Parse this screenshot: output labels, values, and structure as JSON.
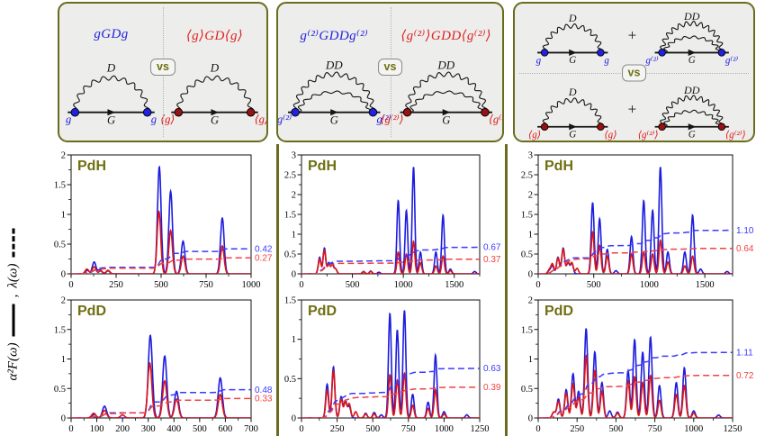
{
  "colors": {
    "blue": "#1c1cdf",
    "red": "#dc1414",
    "lambda_blue": "#3a3aff",
    "lambda_red": "#f24141",
    "blue_vertex": "#2121e6",
    "red_vertex": "#991111",
    "olive_border": "#6b6b1d",
    "panel_bg": "#ededeb",
    "title_olive": "#6f6f12",
    "axis": "#111111"
  },
  "ylabel": {
    "alpha_f": "α²F(ω)",
    "comma": ",",
    "lambda": "λ(ω)"
  },
  "panels": [
    {
      "name": "first-order-vertex",
      "vs": "vs",
      "left": {
        "formula": "gGDg",
        "color": "blue",
        "arc": "D",
        "arc_label": "D",
        "line_label": "G",
        "vertex_left": "g",
        "vertex_right": "g"
      },
      "right": {
        "formula": "⟨g⟩GD⟨g⟩",
        "color": "red",
        "arc": "D",
        "arc_label": "D",
        "line_label": "G",
        "vertex_left": "⟨g⟩",
        "vertex_right": "⟨g⟩"
      }
    },
    {
      "name": "second-order-vertex",
      "vs": "vs",
      "left": {
        "formula": "g⁽²⁾GDDg⁽²⁾",
        "color": "blue",
        "arc": "DD",
        "arc_label": "DD",
        "line_label": "G",
        "vertex_left": "g⁽²⁾",
        "vertex_right": "g⁽²⁾"
      },
      "right": {
        "formula": "⟨g⁽²⁾⟩GDD⟨g⁽²⁾⟩",
        "color": "red",
        "arc": "DD",
        "arc_label": "DD",
        "line_label": "G",
        "vertex_left": "⟨g⁽²⁾⟩",
        "vertex_right": "⟨g⁽²⁾⟩"
      }
    },
    {
      "name": "sum-of-diagrams",
      "vs": "vs",
      "plus": "+",
      "rows": [
        {
          "color": "blue",
          "diagrams": [
            {
              "arc": "D",
              "arc_label": "D",
              "line_label": "G",
              "vertex_left": "g",
              "vertex_right": "g"
            },
            {
              "arc": "DD",
              "arc_label": "DD",
              "line_label": "G",
              "vertex_left": "g⁽²⁾",
              "vertex_right": "g⁽²⁾"
            }
          ]
        },
        {
          "color": "red",
          "diagrams": [
            {
              "arc": "D",
              "arc_label": "D",
              "line_label": "G",
              "vertex_left": "⟨g⟩",
              "vertex_right": "⟨g⟩"
            },
            {
              "arc": "DD",
              "arc_label": "DD",
              "line_label": "G",
              "vertex_left": "⟨g⁽²⁾⟩",
              "vertex_right": "⟨g⁽²⁾⟩"
            }
          ]
        }
      ]
    }
  ],
  "chart_data": [
    {
      "id": "pdh-g",
      "type": "line",
      "title": "PdH",
      "xlim": [
        0,
        1000
      ],
      "xticks": [
        0,
        250,
        500,
        750,
        1000
      ],
      "ylim": [
        0,
        2
      ],
      "yticks": [
        0,
        0.5,
        1,
        1.5,
        2
      ],
      "sigma": 10,
      "series": [
        {
          "name": "alpha2F-blue",
          "color": "blue",
          "style": "solid",
          "peaks": [
            [
              90,
              0.06
            ],
            [
              128,
              0.2
            ],
            [
              160,
              0.07
            ],
            [
              205,
              0.05
            ],
            [
              490,
              1.8
            ],
            [
              553,
              1.39
            ],
            [
              622,
              0.55
            ],
            [
              840,
              0.94
            ]
          ]
        },
        {
          "name": "alpha2F-red",
          "color": "red",
          "style": "solid",
          "peaks": [
            [
              88,
              0.08
            ],
            [
              128,
              0.12
            ],
            [
              165,
              0.05
            ],
            [
              205,
              0.06
            ],
            [
              488,
              1.05
            ],
            [
              553,
              0.73
            ],
            [
              622,
              0.3
            ],
            [
              840,
              0.47
            ]
          ]
        },
        {
          "name": "lambda-blue",
          "color": "blue",
          "style": "dashed",
          "final": 0.42,
          "label": "0.42"
        },
        {
          "name": "lambda-red",
          "color": "red",
          "style": "dashed",
          "final": 0.27,
          "label": "0.27"
        }
      ]
    },
    {
      "id": "pdh-g2",
      "type": "line",
      "title": "PdH",
      "xlim": [
        0,
        1750
      ],
      "xticks": [
        0,
        500,
        1000,
        1500
      ],
      "ylim": [
        0,
        3
      ],
      "yticks": [
        0,
        0.5,
        1,
        1.5,
        2,
        2.5,
        3
      ],
      "sigma": 13,
      "series": [
        {
          "name": "alpha2F-blue",
          "color": "blue",
          "style": "solid",
          "peaks": [
            [
              178,
              0.42
            ],
            [
              225,
              0.65
            ],
            [
              268,
              0.28
            ],
            [
              303,
              0.26
            ],
            [
              335,
              0.12
            ],
            [
              610,
              0.06
            ],
            [
              680,
              0.07
            ],
            [
              760,
              0.04
            ],
            [
              950,
              1.85
            ],
            [
              1030,
              1.6
            ],
            [
              1100,
              2.7
            ],
            [
              1168,
              0.55
            ],
            [
              1320,
              0.55
            ],
            [
              1390,
              1.48
            ],
            [
              1462,
              0.12
            ],
            [
              1700,
              0.06
            ]
          ]
        },
        {
          "name": "alpha2F-red",
          "color": "red",
          "style": "solid",
          "peaks": [
            [
              178,
              0.38
            ],
            [
              225,
              0.6
            ],
            [
              268,
              0.25
            ],
            [
              303,
              0.22
            ],
            [
              335,
              0.12
            ],
            [
              610,
              0.05
            ],
            [
              680,
              0.06
            ],
            [
              950,
              0.55
            ],
            [
              1030,
              0.5
            ],
            [
              1100,
              0.82
            ],
            [
              1168,
              0.28
            ],
            [
              1320,
              0.2
            ],
            [
              1390,
              0.45
            ],
            [
              1462,
              0.08
            ]
          ]
        },
        {
          "name": "lambda-blue",
          "color": "blue",
          "style": "dashed",
          "final": 0.67,
          "label": "0.67"
        },
        {
          "name": "lambda-red",
          "color": "red",
          "style": "dashed",
          "final": 0.37,
          "label": "0.37"
        }
      ]
    },
    {
      "id": "pdh-total",
      "type": "line",
      "title": "PdH",
      "xlim": [
        0,
        1750
      ],
      "xticks": [
        0,
        500,
        1000,
        1500
      ],
      "ylim": [
        0,
        3
      ],
      "yticks": [
        0,
        0.5,
        1,
        1.5,
        2,
        2.5,
        3
      ],
      "sigma": 13,
      "series": [
        {
          "name": "alpha2F-blue",
          "color": "blue",
          "style": "solid",
          "peaks": [
            [
              100,
              0.08
            ],
            [
              128,
              0.2
            ],
            [
              178,
              0.42
            ],
            [
              225,
              0.65
            ],
            [
              268,
              0.28
            ],
            [
              303,
              0.26
            ],
            [
              490,
              1.8
            ],
            [
              553,
              1.39
            ],
            [
              622,
              0.62
            ],
            [
              700,
              0.08
            ],
            [
              840,
              0.94
            ],
            [
              950,
              1.85
            ],
            [
              1030,
              1.6
            ],
            [
              1100,
              2.7
            ],
            [
              1168,
              0.55
            ],
            [
              1320,
              0.55
            ],
            [
              1390,
              1.48
            ],
            [
              1462,
              0.12
            ],
            [
              1700,
              0.06
            ]
          ]
        },
        {
          "name": "alpha2F-red",
          "color": "red",
          "style": "solid",
          "peaks": [
            [
              100,
              0.1
            ],
            [
              128,
              0.25
            ],
            [
              178,
              0.4
            ],
            [
              225,
              0.62
            ],
            [
              268,
              0.3
            ],
            [
              303,
              0.28
            ],
            [
              350,
              0.14
            ],
            [
              490,
              1.05
            ],
            [
              553,
              0.72
            ],
            [
              622,
              0.45
            ],
            [
              840,
              0.5
            ],
            [
              950,
              0.55
            ],
            [
              1030,
              0.5
            ],
            [
              1100,
              0.85
            ],
            [
              1168,
              0.3
            ],
            [
              1320,
              0.2
            ],
            [
              1390,
              0.45
            ]
          ]
        },
        {
          "name": "lambda-blue",
          "color": "blue",
          "style": "dashed",
          "final": 1.1,
          "label": "1.10"
        },
        {
          "name": "lambda-red",
          "color": "red",
          "style": "dashed",
          "final": 0.64,
          "label": "0.64"
        }
      ]
    },
    {
      "id": "pdd-g",
      "type": "line",
      "title": "PdD",
      "xlim": [
        0,
        700
      ],
      "xticks": [
        0,
        100,
        200,
        300,
        400,
        500,
        600,
        700
      ],
      "ylim": [
        0,
        2
      ],
      "yticks": [
        0,
        0.5,
        1,
        1.5,
        2
      ],
      "sigma": 8,
      "series": [
        {
          "name": "alpha2F-blue",
          "color": "blue",
          "style": "solid",
          "peaks": [
            [
              90,
              0.06
            ],
            [
              130,
              0.2
            ],
            [
              308,
              1.4
            ],
            [
              364,
              1.05
            ],
            [
              410,
              0.45
            ],
            [
              580,
              0.68
            ]
          ]
        },
        {
          "name": "alpha2F-red",
          "color": "red",
          "style": "solid",
          "peaks": [
            [
              88,
              0.08
            ],
            [
              130,
              0.13
            ],
            [
              200,
              0.05
            ],
            [
              306,
              0.93
            ],
            [
              364,
              0.63
            ],
            [
              410,
              0.32
            ],
            [
              580,
              0.4
            ]
          ]
        },
        {
          "name": "lambda-blue",
          "color": "blue",
          "style": "dashed",
          "final": 0.48,
          "label": "0.48"
        },
        {
          "name": "lambda-red",
          "color": "red",
          "style": "dashed",
          "final": 0.33,
          "label": "0.33"
        }
      ]
    },
    {
      "id": "pdd-g2",
      "type": "line",
      "title": "PdD",
      "xlim": [
        0,
        1250
      ],
      "xticks": [
        0,
        250,
        500,
        750,
        1000,
        1250
      ],
      "ylim": [
        0,
        1.5
      ],
      "yticks": [
        0,
        0.5,
        1,
        1.5
      ],
      "sigma": 10,
      "series": [
        {
          "name": "alpha2F-blue",
          "color": "blue",
          "style": "solid",
          "peaks": [
            [
              180,
              0.43
            ],
            [
              224,
              0.65
            ],
            [
              278,
              0.27
            ],
            [
              308,
              0.22
            ],
            [
              335,
              0.15
            ],
            [
              450,
              0.06
            ],
            [
              510,
              0.07
            ],
            [
              560,
              0.04
            ],
            [
              620,
              1.33
            ],
            [
              672,
              1.12
            ],
            [
              722,
              1.37
            ],
            [
              780,
              0.3
            ],
            [
              888,
              0.2
            ],
            [
              940,
              0.8
            ],
            [
              1000,
              0.08
            ],
            [
              1160,
              0.04
            ]
          ]
        },
        {
          "name": "alpha2F-red",
          "color": "red",
          "style": "solid",
          "peaks": [
            [
              180,
              0.35
            ],
            [
              224,
              0.6
            ],
            [
              278,
              0.24
            ],
            [
              308,
              0.2
            ],
            [
              335,
              0.18
            ],
            [
              380,
              0.08
            ],
            [
              450,
              0.05
            ],
            [
              510,
              0.05
            ],
            [
              620,
              0.55
            ],
            [
              672,
              0.48
            ],
            [
              722,
              0.57
            ],
            [
              780,
              0.16
            ],
            [
              888,
              0.12
            ],
            [
              940,
              0.36
            ],
            [
              1000,
              0.05
            ]
          ]
        },
        {
          "name": "lambda-blue",
          "color": "blue",
          "style": "dashed",
          "final": 0.63,
          "label": "0.63"
        },
        {
          "name": "lambda-red",
          "color": "red",
          "style": "dashed",
          "final": 0.39,
          "label": "0.39"
        }
      ]
    },
    {
      "id": "pdd-total",
      "type": "line",
      "title": "PdD",
      "xlim": [
        0,
        1250
      ],
      "xticks": [
        0,
        250,
        500,
        750,
        1000,
        1250
      ],
      "ylim": [
        0,
        2
      ],
      "yticks": [
        0,
        0.5,
        1,
        1.5,
        2
      ],
      "sigma": 10,
      "series": [
        {
          "name": "alpha2F-blue",
          "color": "blue",
          "style": "solid",
          "peaks": [
            [
              100,
              0.1
            ],
            [
              130,
              0.32
            ],
            [
              180,
              0.48
            ],
            [
              224,
              0.75
            ],
            [
              260,
              0.45
            ],
            [
              308,
              1.52
            ],
            [
              364,
              1.12
            ],
            [
              410,
              0.6
            ],
            [
              460,
              0.12
            ],
            [
              510,
              0.1
            ],
            [
              578,
              0.8
            ],
            [
              620,
              1.33
            ],
            [
              672,
              1.12
            ],
            [
              722,
              1.37
            ],
            [
              780,
              0.55
            ],
            [
              888,
              0.6
            ],
            [
              940,
              0.85
            ],
            [
              1000,
              0.12
            ],
            [
              1160,
              0.05
            ]
          ]
        },
        {
          "name": "alpha2F-red",
          "color": "red",
          "style": "solid",
          "peaks": [
            [
              100,
              0.1
            ],
            [
              130,
              0.28
            ],
            [
              180,
              0.42
            ],
            [
              224,
              0.58
            ],
            [
              260,
              0.35
            ],
            [
              308,
              1.05
            ],
            [
              364,
              0.8
            ],
            [
              410,
              0.45
            ],
            [
              510,
              0.08
            ],
            [
              578,
              0.62
            ],
            [
              620,
              0.7
            ],
            [
              672,
              0.6
            ],
            [
              722,
              0.72
            ],
            [
              780,
              0.3
            ],
            [
              888,
              0.4
            ],
            [
              940,
              0.55
            ],
            [
              1000,
              0.08
            ]
          ]
        },
        {
          "name": "lambda-blue",
          "color": "blue",
          "style": "dashed",
          "final": 1.11,
          "label": "1.11"
        },
        {
          "name": "lambda-red",
          "color": "red",
          "style": "dashed",
          "final": 0.72,
          "label": "0.72"
        }
      ]
    }
  ]
}
